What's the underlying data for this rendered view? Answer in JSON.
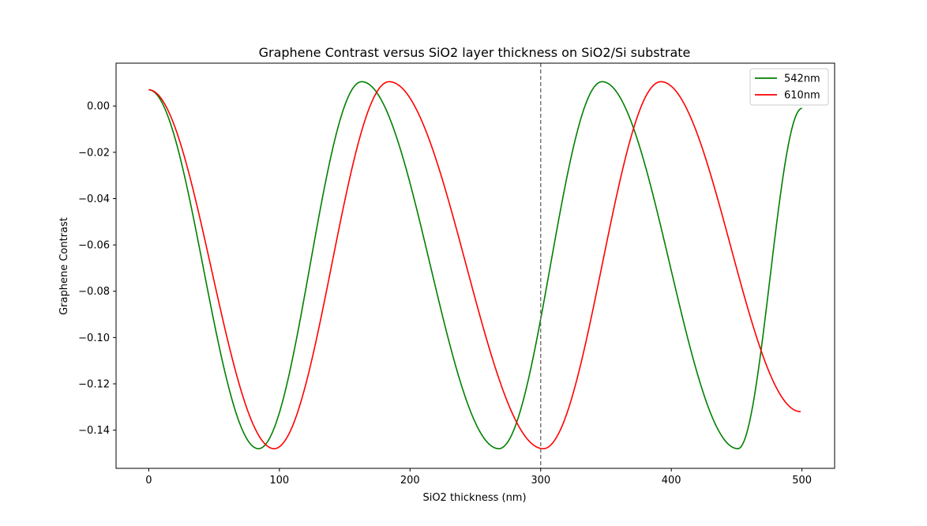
{
  "chart_data": {
    "type": "line",
    "title": "Graphene Contrast versus SiO2 layer thickness on SiO2/Si substrate",
    "xlabel": "SiO2 thickness (nm)",
    "ylabel": "Graphene Contrast",
    "xlim": [
      -25,
      525
    ],
    "ylim": [
      -0.1565,
      0.0185
    ],
    "x_ticks": [
      0,
      100,
      200,
      300,
      400,
      500
    ],
    "x_tick_labels": [
      "0",
      "100",
      "200",
      "300",
      "400",
      "500"
    ],
    "y_ticks": [
      0.0,
      -0.02,
      -0.04,
      -0.06,
      -0.08,
      -0.1,
      -0.12,
      -0.14
    ],
    "y_tick_labels": [
      "0.00",
      "−0.02",
      "−0.04",
      "−0.06",
      "−0.08",
      "−0.10",
      "−0.12",
      "−0.14"
    ],
    "grid": false,
    "legend_position": "top-right",
    "vertical_line": {
      "x": 300,
      "style": "dashed",
      "color": "#707070"
    },
    "series": [
      {
        "name": "542nm",
        "color": "#008000",
        "wavelength_nm": 542,
        "x_range": [
          0,
          500
        ],
        "key_points": [
          {
            "x": 0,
            "y": 0.007
          },
          {
            "x": 84,
            "y": -0.148
          },
          {
            "x": 163,
            "y": 0.0105
          },
          {
            "x": 268,
            "y": -0.148
          },
          {
            "x": 347,
            "y": 0.0105
          },
          {
            "x": 451,
            "y": -0.148
          },
          {
            "x": 500,
            "y": -0.001
          }
        ]
      },
      {
        "name": "610nm",
        "color": "#ff0000",
        "wavelength_nm": 610,
        "x_range": [
          0,
          499
        ],
        "key_points": [
          {
            "x": 0,
            "y": 0.007
          },
          {
            "x": 96,
            "y": -0.148
          },
          {
            "x": 184,
            "y": 0.0105
          },
          {
            "x": 302,
            "y": -0.148
          },
          {
            "x": 392,
            "y": 0.0105
          },
          {
            "x": 499,
            "y": -0.132
          }
        ]
      }
    ]
  }
}
